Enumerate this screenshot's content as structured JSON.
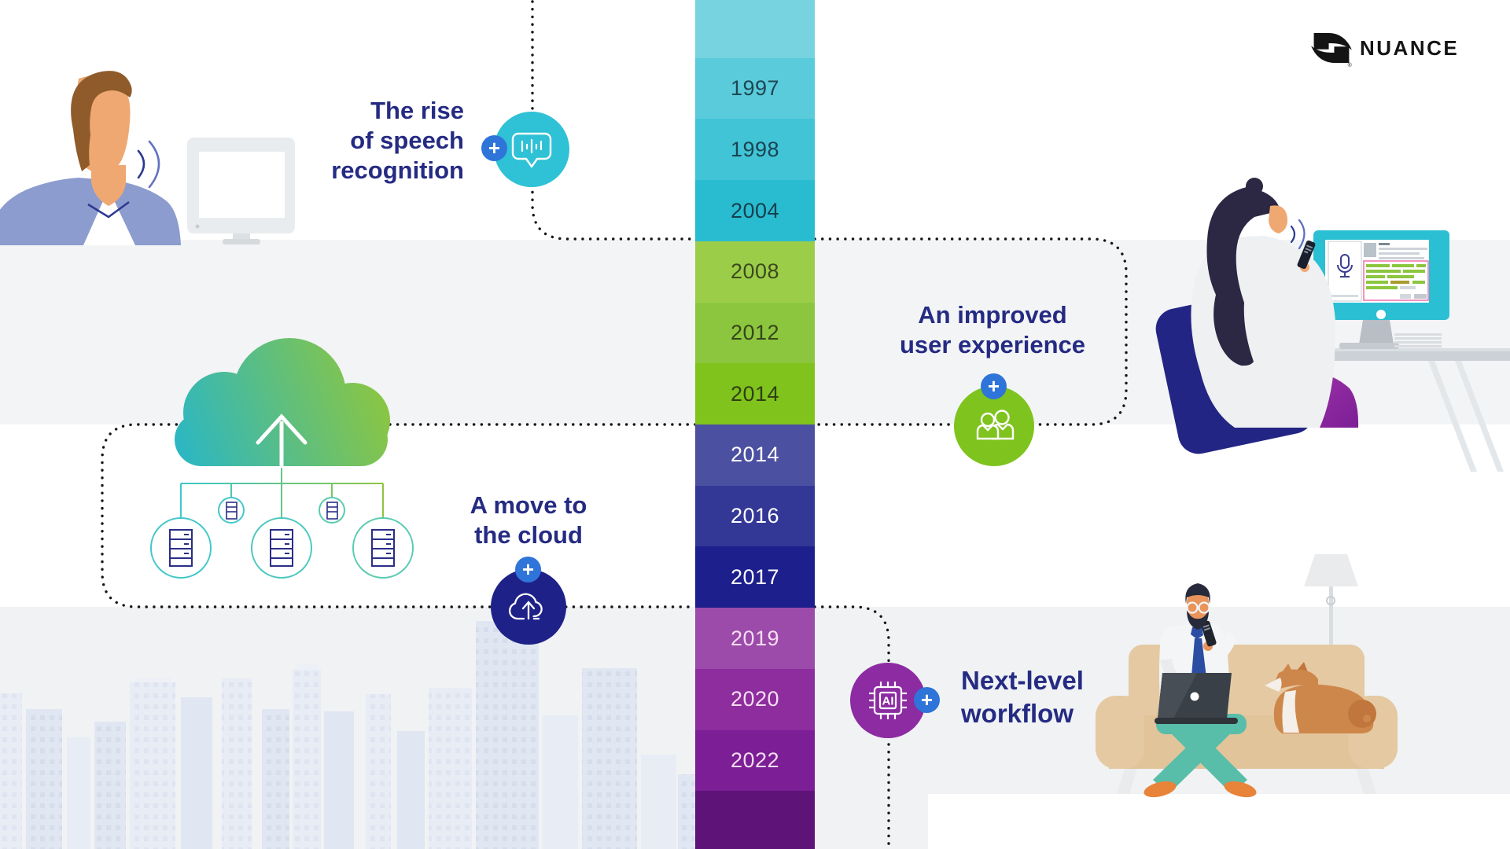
{
  "brand": {
    "logo_text": "NUANCE",
    "registered_mark": "®",
    "logo_icon": "nuance-swoosh-icon"
  },
  "timeline": {
    "segments": [
      {
        "year": "",
        "bg": "#77D3DF",
        "fg": "#1D4753"
      },
      {
        "year": "1997",
        "bg": "#5ACBDB",
        "fg": "#1D4753"
      },
      {
        "year": "1998",
        "bg": "#41C4D6",
        "fg": "#1B4450"
      },
      {
        "year": "2004",
        "bg": "#29BCD1",
        "fg": "#173F4C"
      },
      {
        "year": "2008",
        "bg": "#9CCD49",
        "fg": "#3C4A1E"
      },
      {
        "year": "2012",
        "bg": "#8CC63E",
        "fg": "#36451A"
      },
      {
        "year": "2014",
        "bg": "#7FC31C",
        "fg": "#2F3F13"
      },
      {
        "year": "2014",
        "bg": "#4C50A1",
        "fg": "#FFFFFF"
      },
      {
        "year": "2016",
        "bg": "#333897",
        "fg": "#FFFFFF"
      },
      {
        "year": "2017",
        "bg": "#1C1F8C",
        "fg": "#FFFFFF"
      },
      {
        "year": "2019",
        "bg": "#9C4BAA",
        "fg": "#F6DDF2"
      },
      {
        "year": "2020",
        "bg": "#8D2D9E",
        "fg": "#F6DDF2"
      },
      {
        "year": "2022",
        "bg": "#7C1E96",
        "fg": "#F6DDF2"
      },
      {
        "year": "",
        "bg": "#5E1378",
        "fg": "#FFFFFF"
      }
    ]
  },
  "sections": {
    "speech": {
      "title_lines": [
        "The rise",
        "of speech",
        "recognition"
      ],
      "icon": "speech-bubble-waveform-icon",
      "circle_color": "#2FC1D5"
    },
    "ux": {
      "title_lines": [
        "An improved",
        "user experience"
      ],
      "icon": "two-users-icon",
      "circle_color": "#7FC31E"
    },
    "cloud": {
      "title_lines": [
        "A move to",
        "the cloud"
      ],
      "icon": "cloud-upload-icon",
      "circle_color": "#1E2188"
    },
    "workflow": {
      "title_lines": [
        "Next-level",
        "workflow"
      ],
      "icon": "ai-chip-icon",
      "circle_color": "#8C2BA2",
      "chip_label": "AI"
    }
  },
  "badges": {
    "plus": "+",
    "color": "#2E74D9"
  },
  "palette": {
    "title_text": "#252B82",
    "band_middle": "#F3F4F6",
    "band_bottom": "#F0F2F4",
    "dotted_line": "#161616",
    "cloud_gradient_start": "#28B6C8",
    "cloud_gradient_end": "#8DC63F"
  }
}
